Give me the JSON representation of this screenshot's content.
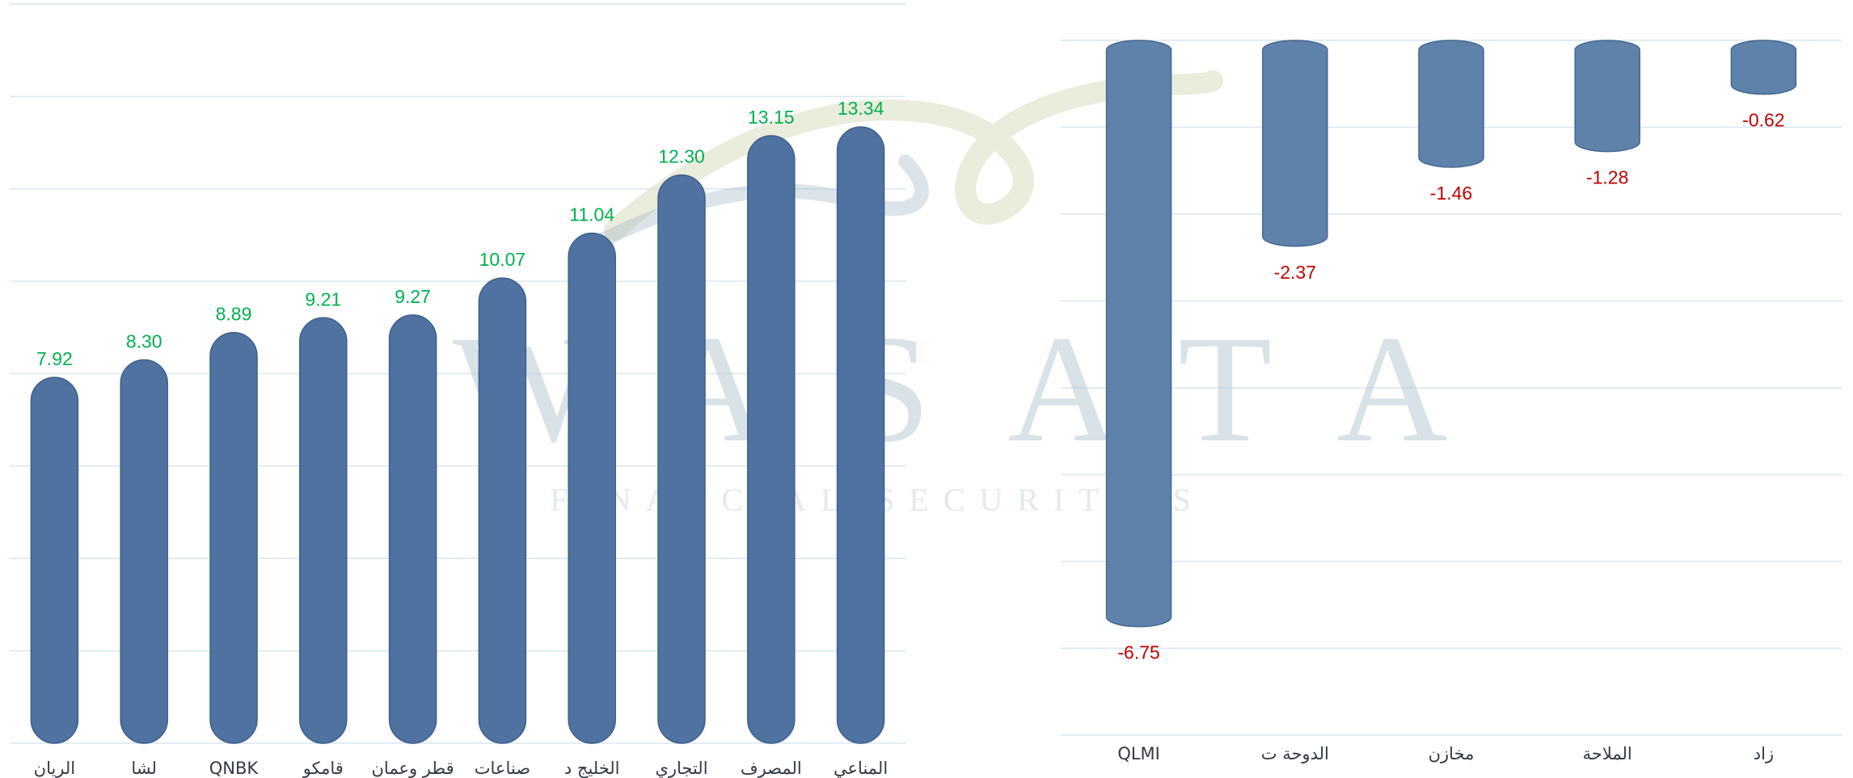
{
  "watermark": {
    "brand": "WASATA",
    "tagline": "FINANCIAL SECURITIES"
  },
  "colors": {
    "bar_left": "#4f72a0",
    "bar_right": "#5f82aa",
    "positive": "#00b050",
    "negative": "#c00000",
    "grid": "#d9e6f0"
  },
  "chart_data": [
    {
      "type": "bar",
      "title": "",
      "categories": [
        "الريان",
        "لشا",
        "QNBK",
        "قامكو",
        "قطر وعمان",
        "صناعات",
        "الخليج د",
        "التجاري",
        "المصرف",
        "المناعي"
      ],
      "values": [
        7.92,
        8.3,
        8.89,
        9.21,
        9.27,
        10.07,
        11.04,
        12.3,
        13.15,
        13.34
      ],
      "value_labels": [
        "7.92",
        "8.30",
        "8.89",
        "9.21",
        "9.27",
        "10.07",
        "11.04",
        "12.30",
        "13.15",
        "13.34"
      ],
      "ylim": [
        0,
        16
      ],
      "grid": true,
      "legend": "none"
    },
    {
      "type": "bar",
      "title": "",
      "categories": [
        "QLMI",
        "الدوحة ت",
        "مخازن",
        "الملاحة",
        "زاد"
      ],
      "values": [
        -6.75,
        -2.37,
        -1.46,
        -1.28,
        -0.62
      ],
      "value_labels": [
        "-6.75",
        "-2.37",
        "-1.46",
        "-1.28",
        "-0.62"
      ],
      "ylim": [
        -8,
        0
      ],
      "grid": true,
      "legend": "none"
    }
  ]
}
